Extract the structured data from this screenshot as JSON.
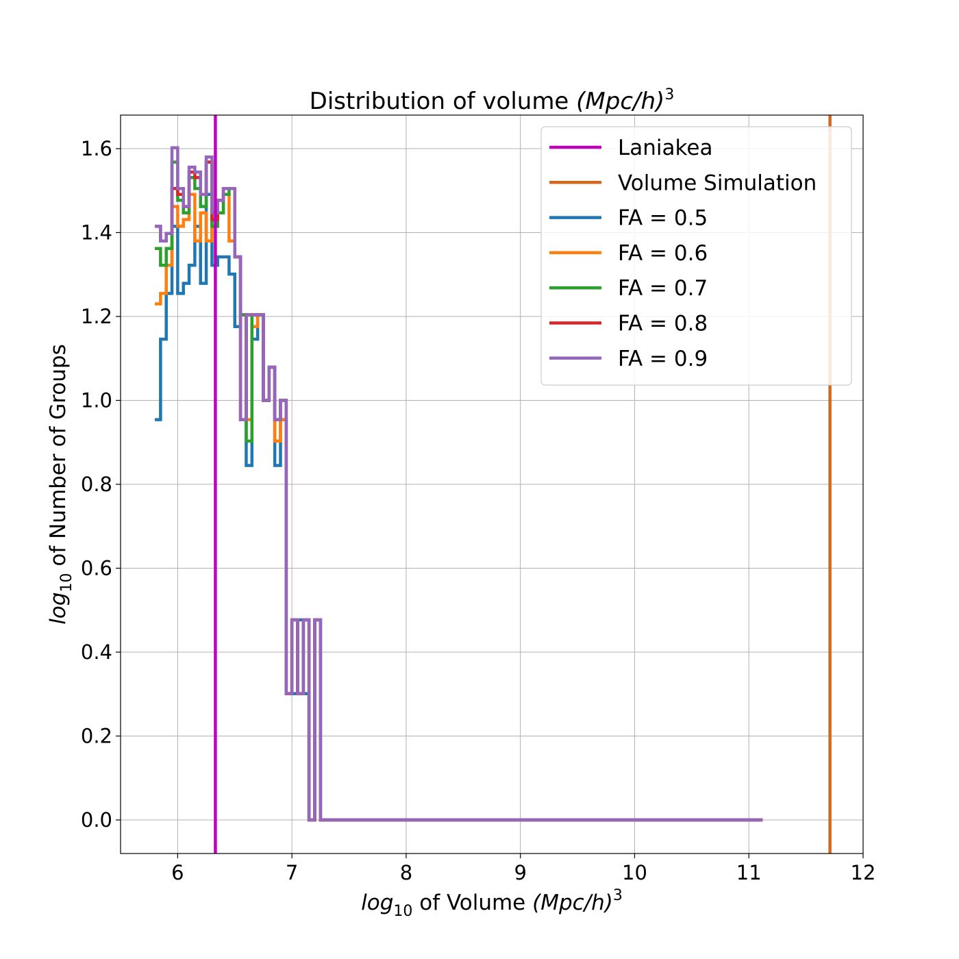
{
  "chart_data": {
    "type": "line",
    "title": {
      "prefix": "Distribution of volume ",
      "math": "(Mpc/h)",
      "sup": "3"
    },
    "xlabel": {
      "italic": "log",
      "sub": "10",
      "text": " of Volume ",
      "math": "(Mpc/h)",
      "sup": "3"
    },
    "ylabel": {
      "italic": "log",
      "sub": "10",
      "text": " of Number of Groups"
    },
    "xlim": [
      5.5,
      12.0
    ],
    "ylim": [
      -0.08,
      1.68
    ],
    "xticks": [
      6,
      7,
      8,
      9,
      10,
      11,
      12
    ],
    "xtick_labels": [
      "6",
      "7",
      "8",
      "9",
      "10",
      "11",
      "12"
    ],
    "yticks": [
      0.0,
      0.2,
      0.4,
      0.6,
      0.8,
      1.0,
      1.2,
      1.4,
      1.6
    ],
    "ytick_labels": [
      "0.0",
      "0.2",
      "0.4",
      "0.6",
      "0.8",
      "1.0",
      "1.2",
      "1.4",
      "1.6"
    ],
    "grid": true,
    "legend_position": "top-right",
    "vlines": [
      {
        "name": "Laniakea",
        "x": 6.33,
        "color": "#bf00bf"
      },
      {
        "name": "Volume Simulation",
        "x": 11.71,
        "color": "#d2691e"
      }
    ],
    "series": [
      {
        "name": "FA = 0.5",
        "color": "#1f77b4",
        "x": [
          5.8,
          5.85,
          5.9,
          5.95,
          6.0,
          6.05,
          6.1,
          6.15,
          6.2,
          6.25,
          6.3,
          6.35,
          6.4,
          6.45,
          6.5,
          6.55,
          6.6,
          6.65,
          6.7,
          6.75,
          6.8,
          6.85,
          6.9,
          6.95,
          7.0,
          7.05,
          7.1,
          7.15,
          7.2,
          7.25,
          7.3,
          11.12
        ],
        "y": [
          0.954,
          1.146,
          1.255,
          1.415,
          1.255,
          1.279,
          1.322,
          1.415,
          1.279,
          1.491,
          1.322,
          1.342,
          1.342,
          1.301,
          1.176,
          1.204,
          0.845,
          1.146,
          1.204,
          1.0,
          1.079,
          0.845,
          0.954,
          0.301,
          0.301,
          0.477,
          0.301,
          0.0,
          0.477,
          0.0,
          0.0,
          null
        ]
      },
      {
        "name": "FA = 0.6",
        "color": "#ff7f0e",
        "x": [
          5.8,
          5.85,
          5.9,
          5.95,
          6.0,
          6.05,
          6.1,
          6.15,
          6.2,
          6.25,
          6.3,
          6.35,
          6.4,
          6.45,
          6.5,
          6.55,
          6.6,
          6.65,
          6.7,
          6.75,
          6.8,
          6.85,
          6.9,
          6.95,
          7.0,
          7.05,
          7.1,
          7.15,
          7.2,
          7.25,
          7.3,
          11.12
        ],
        "y": [
          1.23,
          1.255,
          1.322,
          1.462,
          1.415,
          1.431,
          1.491,
          1.38,
          1.447,
          1.38,
          1.415,
          1.447,
          1.491,
          1.38,
          1.342,
          1.204,
          0.954,
          1.176,
          1.204,
          1.0,
          1.079,
          0.903,
          0.954,
          0.301,
          0.477,
          0.301,
          0.477,
          0.0,
          0.477,
          0.0,
          0.0,
          null
        ]
      },
      {
        "name": "FA = 0.7",
        "color": "#2ca02c",
        "x": [
          5.8,
          5.85,
          5.9,
          5.95,
          6.0,
          6.05,
          6.1,
          6.15,
          6.2,
          6.25,
          6.3,
          6.35,
          6.4,
          6.45,
          6.5,
          6.55,
          6.6,
          6.65,
          6.7,
          6.75,
          6.8,
          6.85,
          6.9,
          6.95,
          7.0,
          7.05,
          7.1,
          7.15,
          7.2,
          7.25,
          7.3,
          11.12
        ],
        "y": [
          1.362,
          1.322,
          1.362,
          1.568,
          1.477,
          1.447,
          1.531,
          1.505,
          1.462,
          1.568,
          1.415,
          1.447,
          1.491,
          1.505,
          1.342,
          1.204,
          0.903,
          1.204,
          1.204,
          1.0,
          1.079,
          0.954,
          1.0,
          0.301,
          0.477,
          0.301,
          0.477,
          0.0,
          0.477,
          0.0,
          0.0,
          null
        ]
      },
      {
        "name": "FA = 0.8",
        "color": "#d62728",
        "x": [
          5.8,
          5.85,
          5.9,
          5.95,
          6.0,
          6.05,
          6.1,
          6.15,
          6.2,
          6.25,
          6.3,
          6.35,
          6.4,
          6.45,
          6.5,
          6.55,
          6.6,
          6.65,
          6.7,
          6.75,
          6.8,
          6.85,
          6.9,
          6.95,
          7.0,
          7.05,
          7.1,
          7.15,
          7.2,
          7.25,
          7.3,
          11.12
        ],
        "y": [
          1.415,
          1.38,
          1.398,
          1.505,
          1.491,
          1.462,
          1.544,
          1.531,
          1.491,
          1.568,
          1.431,
          1.477,
          1.505,
          1.505,
          1.342,
          0.954,
          1.204,
          1.204,
          1.204,
          1.0,
          1.079,
          0.954,
          1.0,
          0.301,
          0.477,
          0.301,
          0.477,
          0.0,
          0.477,
          0.0,
          0.0,
          null
        ]
      },
      {
        "name": "FA = 0.9",
        "color": "#9467bd",
        "x": [
          5.8,
          5.85,
          5.9,
          5.95,
          6.0,
          6.05,
          6.1,
          6.15,
          6.2,
          6.25,
          6.3,
          6.35,
          6.4,
          6.45,
          6.5,
          6.55,
          6.6,
          6.65,
          6.7,
          6.75,
          6.8,
          6.85,
          6.9,
          6.95,
          7.0,
          7.05,
          7.1,
          7.15,
          7.2,
          7.25,
          7.3,
          11.12
        ],
        "y": [
          1.415,
          1.38,
          1.398,
          1.602,
          1.505,
          1.462,
          1.556,
          1.544,
          1.491,
          1.58,
          1.447,
          1.477,
          1.505,
          1.505,
          1.342,
          0.954,
          1.204,
          1.204,
          1.204,
          1.0,
          1.079,
          0.954,
          1.0,
          0.301,
          0.477,
          0.301,
          0.477,
          0.0,
          0.477,
          0.0,
          0.0,
          null
        ]
      }
    ]
  }
}
